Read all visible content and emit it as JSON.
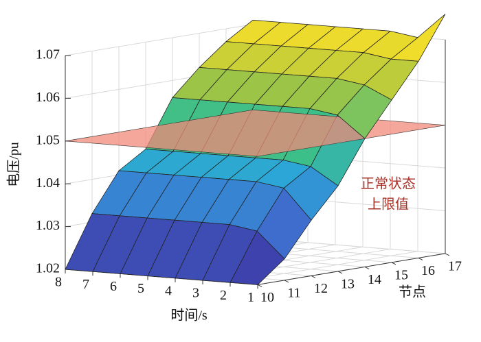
{
  "chart_data": {
    "type": "surface",
    "xlabel": "时间/s",
    "ylabel": "节点",
    "zlabel": "电压/pu",
    "x": [
      1,
      2,
      3,
      4,
      5,
      6,
      7,
      8
    ],
    "y": [
      10,
      11,
      12,
      13,
      14,
      15,
      16,
      17
    ],
    "values": [
      [
        1.02,
        1.02,
        1.02,
        1.02,
        1.02,
        1.02,
        1.02,
        1.02
      ],
      [
        1.025,
        1.031,
        1.032,
        1.032,
        1.032,
        1.032,
        1.032,
        1.032
      ],
      [
        1.033,
        1.04,
        1.041,
        1.041,
        1.041,
        1.041,
        1.041,
        1.041
      ],
      [
        1.04,
        1.044,
        1.045,
        1.045,
        1.045,
        1.045,
        1.045,
        1.045
      ],
      [
        1.05,
        1.055,
        1.056,
        1.056,
        1.056,
        1.056,
        1.056,
        1.056
      ],
      [
        1.058,
        1.061,
        1.062,
        1.062,
        1.062,
        1.062,
        1.062,
        1.062
      ],
      [
        1.066,
        1.066,
        1.067,
        1.067,
        1.067,
        1.067,
        1.067,
        1.067
      ],
      [
        1.076,
        1.07,
        1.071,
        1.071,
        1.071,
        1.071,
        1.071,
        1.071
      ]
    ],
    "xlim": [
      1,
      8
    ],
    "ylim": [
      10,
      17
    ],
    "zlim": [
      1.02,
      1.07
    ],
    "xticks": [
      1,
      2,
      3,
      4,
      5,
      6,
      7,
      8
    ],
    "yticks": [
      10,
      11,
      12,
      13,
      14,
      15,
      16,
      17
    ],
    "zticks": [
      1.02,
      1.03,
      1.04,
      1.05,
      1.06,
      1.07
    ],
    "plane": {
      "value": 1.05,
      "color": "#f08a78"
    },
    "annotation": [
      "正常状态",
      "上限值"
    ],
    "grid": true
  }
}
